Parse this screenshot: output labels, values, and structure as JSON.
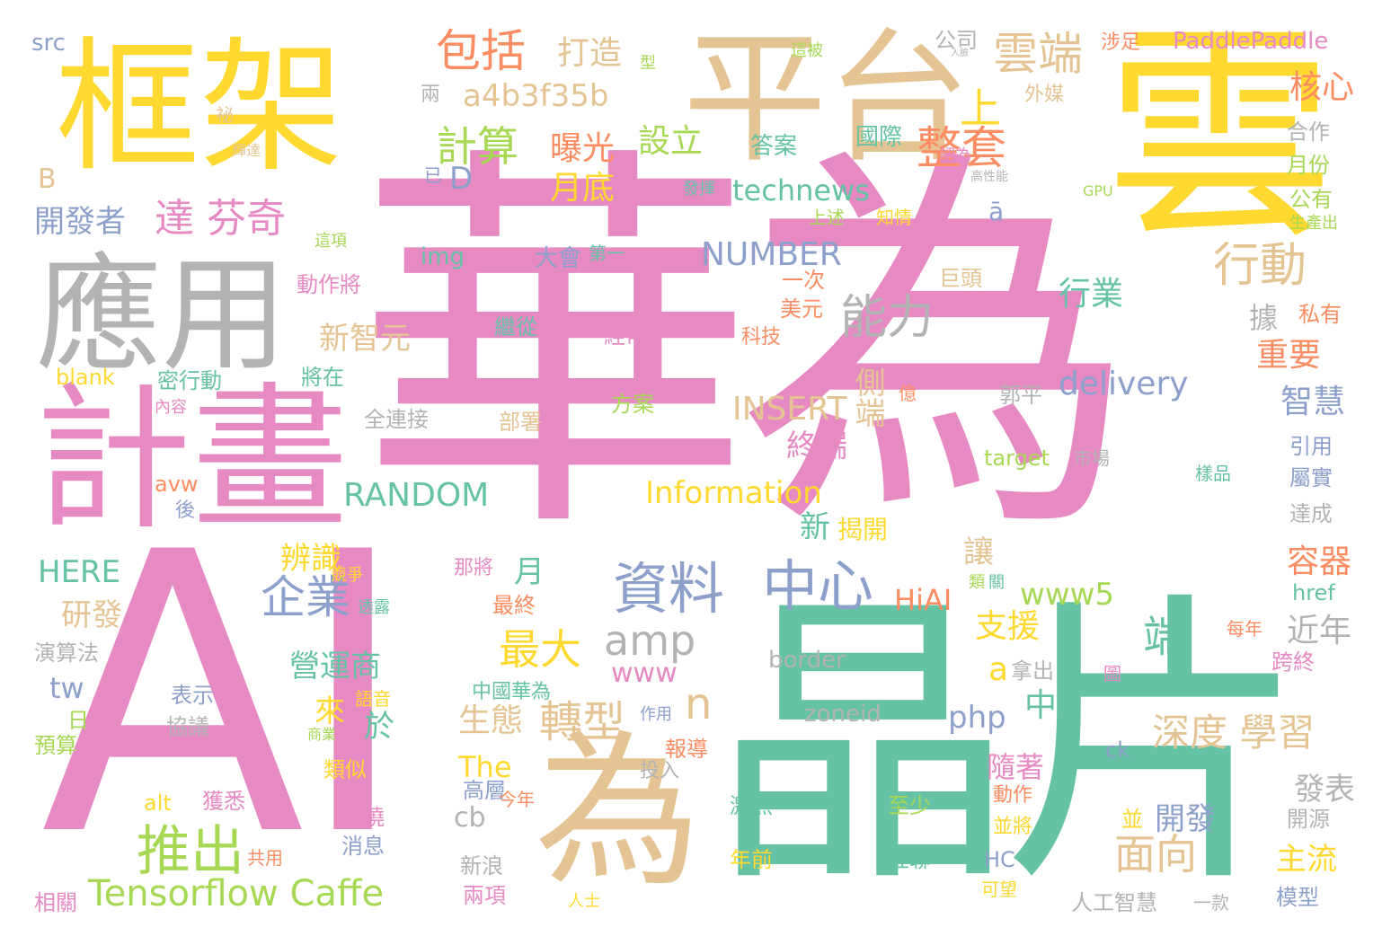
{
  "palette": {
    "pink": "#e78ac3",
    "green": "#66c2a5",
    "orange": "#fc8d62",
    "blue": "#8da0cb",
    "lime": "#a6d854",
    "yellow": "#ffd92f",
    "tan": "#e5c494",
    "gray": "#b3b3b3"
  },
  "words": [
    {
      "text": "華為",
      "color": "pink"
    },
    {
      "text": "AI",
      "color": "pink"
    },
    {
      "text": "雲",
      "color": "yellow"
    },
    {
      "text": "晶片",
      "color": "green"
    },
    {
      "text": "框架",
      "color": "yellow"
    },
    {
      "text": "平台",
      "color": "tan"
    },
    {
      "text": "應用",
      "color": "gray"
    },
    {
      "text": "計畫",
      "color": "pink"
    },
    {
      "text": "為",
      "color": "tan"
    },
    {
      "text": "資料",
      "color": "blue"
    },
    {
      "text": "中心",
      "color": "blue"
    },
    {
      "text": "推出",
      "color": "lime"
    },
    {
      "text": "雲端",
      "color": "tan"
    },
    {
      "text": "整套",
      "color": "orange"
    },
    {
      "text": "行動",
      "color": "tan"
    },
    {
      "text": "能力",
      "color": "gray"
    },
    {
      "text": "企業",
      "color": "blue"
    },
    {
      "text": "amp",
      "color": "gray"
    },
    {
      "text": "包括",
      "color": "orange"
    },
    {
      "text": "計算",
      "color": "lime"
    },
    {
      "text": "達 芬奇",
      "color": "pink"
    },
    {
      "text": "Tensorflow Caffe",
      "color": "lime"
    },
    {
      "text": "轉型",
      "color": "tan"
    },
    {
      "text": "深度 學習",
      "color": "tan"
    },
    {
      "text": "a4b3f35b",
      "color": "tan"
    },
    {
      "text": "端",
      "color": "green"
    },
    {
      "text": "最大",
      "color": "yellow"
    },
    {
      "text": "面向",
      "color": "tan"
    },
    {
      "text": "delivery",
      "color": "blue"
    },
    {
      "text": "RANDOM",
      "color": "green"
    },
    {
      "text": "Information",
      "color": "yellow"
    },
    {
      "text": "technews",
      "color": "green"
    },
    {
      "text": "NUMBER",
      "color": "blue"
    },
    {
      "text": "INSERT",
      "color": "tan"
    },
    {
      "text": "打造",
      "color": "tan"
    },
    {
      "text": "曝光",
      "color": "orange"
    },
    {
      "text": "設立",
      "color": "lime"
    },
    {
      "text": "月底",
      "color": "yellow"
    },
    {
      "text": "開發者",
      "color": "blue"
    },
    {
      "text": "新智元",
      "color": "tan"
    },
    {
      "text": "行業",
      "color": "green"
    },
    {
      "text": "重要",
      "color": "orange"
    },
    {
      "text": "智慧",
      "color": "blue"
    },
    {
      "text": "核心",
      "color": "orange"
    },
    {
      "text": "側端",
      "color": "tan"
    },
    {
      "text": "終端",
      "color": "pink"
    },
    {
      "text": "辨識",
      "color": "yellow"
    },
    {
      "text": "研發",
      "color": "tan"
    },
    {
      "text": "營運商",
      "color": "green"
    },
    {
      "text": "生態",
      "color": "tan"
    },
    {
      "text": "www5",
      "color": "lime"
    },
    {
      "text": "www",
      "color": "pink"
    },
    {
      "text": "HiAI",
      "color": "orange"
    },
    {
      "text": "支援",
      "color": "yellow"
    },
    {
      "text": "容器",
      "color": "orange"
    },
    {
      "text": "近年",
      "color": "gray"
    },
    {
      "text": "HERE",
      "color": "green"
    },
    {
      "text": "The",
      "color": "yellow"
    },
    {
      "text": "php",
      "color": "blue"
    },
    {
      "text": "開發",
      "color": "blue"
    },
    {
      "text": "主流",
      "color": "yellow"
    },
    {
      "text": "發表",
      "color": "gray"
    },
    {
      "text": "隨著",
      "color": "pink"
    },
    {
      "text": "中",
      "color": "green"
    },
    {
      "text": "上",
      "color": "yellow"
    },
    {
      "text": "D",
      "color": "blue"
    },
    {
      "text": "新",
      "color": "green"
    },
    {
      "text": "揭開",
      "color": "yellow"
    },
    {
      "text": "讓",
      "color": "tan"
    },
    {
      "text": "月",
      "color": "green"
    },
    {
      "text": "n",
      "color": "tan"
    },
    {
      "text": "cb",
      "color": "gray"
    },
    {
      "text": "來",
      "color": "yellow"
    },
    {
      "text": "於",
      "color": "green"
    },
    {
      "text": "a",
      "color": "yellow"
    },
    {
      "text": "tw",
      "color": "blue"
    },
    {
      "text": "src",
      "color": "blue"
    },
    {
      "text": "PaddlePaddle",
      "color": "pink"
    },
    {
      "text": "公司",
      "color": "gray"
    },
    {
      "text": "涉足",
      "color": "orange"
    },
    {
      "text": "外媒",
      "color": "tan"
    },
    {
      "text": "兩",
      "color": "gray"
    },
    {
      "text": "國際",
      "color": "green"
    },
    {
      "text": "答案",
      "color": "green"
    },
    {
      "text": "合作",
      "color": "gray"
    },
    {
      "text": "月份",
      "color": "lime"
    },
    {
      "text": "公有",
      "color": "lime"
    },
    {
      "text": "生產出",
      "color": "lime"
    },
    {
      "text": "GPU",
      "color": "lime"
    },
    {
      "text": "認為",
      "color": "pink"
    },
    {
      "text": "高性能",
      "color": "gray"
    },
    {
      "text": "知情",
      "color": "yellow"
    },
    {
      "text": "上述",
      "color": "lime"
    },
    {
      "text": "發揮",
      "color": "green"
    },
    {
      "text": "已",
      "color": "blue"
    },
    {
      "text": "img",
      "color": "green"
    },
    {
      "text": "大會",
      "color": "blue"
    },
    {
      "text": "第一",
      "color": "green"
    },
    {
      "text": "一次",
      "color": "orange"
    },
    {
      "text": "巨頭",
      "color": "tan"
    },
    {
      "text": "美元",
      "color": "orange"
    },
    {
      "text": "科技",
      "color": "orange"
    },
    {
      "text": "私有",
      "color": "orange"
    },
    {
      "text": "據",
      "color": "gray"
    },
    {
      "text": "經常",
      "color": "pink"
    },
    {
      "text": "繼從",
      "color": "green"
    },
    {
      "text": "將在",
      "color": "green"
    },
    {
      "text": "動作將",
      "color": "pink"
    },
    {
      "text": "這項",
      "color": "lime"
    },
    {
      "text": "密行動",
      "color": "green"
    },
    {
      "text": "blank",
      "color": "yellow"
    },
    {
      "text": "內容",
      "color": "pink"
    },
    {
      "text": "億",
      "color": "orange"
    },
    {
      "text": "郭平",
      "color": "gray"
    },
    {
      "text": "全連接",
      "color": "gray"
    },
    {
      "text": "部署",
      "color": "tan"
    },
    {
      "text": "方案",
      "color": "lime"
    },
    {
      "text": "target",
      "color": "lime"
    },
    {
      "text": "市場",
      "color": "gray"
    },
    {
      "text": "樣品",
      "color": "green"
    },
    {
      "text": "引用",
      "color": "blue"
    },
    {
      "text": "屬實",
      "color": "blue"
    },
    {
      "text": "達成",
      "color": "gray"
    },
    {
      "text": "avw",
      "color": "orange"
    },
    {
      "text": "後",
      "color": "blue"
    },
    {
      "text": "那將",
      "color": "pink"
    },
    {
      "text": "競爭",
      "color": "yellow"
    },
    {
      "text": "透露",
      "color": "green"
    },
    {
      "text": "最終",
      "color": "orange"
    },
    {
      "text": "類",
      "color": "lime"
    },
    {
      "text": "關",
      "color": "green"
    },
    {
      "text": "href",
      "color": "green"
    },
    {
      "text": "border",
      "color": "gray"
    },
    {
      "text": "zoneid",
      "color": "gray"
    },
    {
      "text": "拿出",
      "color": "gray"
    },
    {
      "text": "跨終",
      "color": "pink"
    },
    {
      "text": "每年",
      "color": "orange"
    },
    {
      "text": "演算法",
      "color": "gray"
    },
    {
      "text": "表示",
      "color": "blue"
    },
    {
      "text": "協議",
      "color": "gray"
    },
    {
      "text": "日",
      "color": "lime"
    },
    {
      "text": "預算",
      "color": "lime"
    },
    {
      "text": "語音",
      "color": "yellow"
    },
    {
      "text": "商業",
      "color": "lime"
    },
    {
      "text": "類似",
      "color": "yellow"
    },
    {
      "text": "中國華為",
      "color": "green"
    },
    {
      "text": "作用",
      "color": "blue"
    },
    {
      "text": "報導",
      "color": "orange"
    },
    {
      "text": "投入",
      "color": "gray"
    },
    {
      "text": "ck",
      "color": "blue"
    },
    {
      "text": "高層",
      "color": "blue"
    },
    {
      "text": "動作",
      "color": "orange"
    },
    {
      "text": "並將",
      "color": "yellow"
    },
    {
      "text": "並",
      "color": "yellow"
    },
    {
      "text": "今年",
      "color": "orange"
    },
    {
      "text": "激烈",
      "color": "green"
    },
    {
      "text": "至少",
      "color": "lime"
    },
    {
      "text": "互聯",
      "color": "green"
    },
    {
      "text": "年前",
      "color": "yellow"
    },
    {
      "text": "開源",
      "color": "gray"
    },
    {
      "text": "模型",
      "color": "blue"
    },
    {
      "text": "人工智慧",
      "color": "gray"
    },
    {
      "text": "一款",
      "color": "gray"
    },
    {
      "text": "可望",
      "color": "yellow"
    },
    {
      "text": "HC",
      "color": "blue"
    },
    {
      "text": "新浪",
      "color": "gray"
    },
    {
      "text": "兩項",
      "color": "pink"
    },
    {
      "text": "消息",
      "color": "blue"
    },
    {
      "text": "揭曉",
      "color": "pink"
    },
    {
      "text": "獲悉",
      "color": "pink"
    },
    {
      "text": "alt",
      "color": "yellow"
    },
    {
      "text": "共用",
      "color": "orange"
    },
    {
      "text": "相關",
      "color": "pink"
    },
    {
      "text": "人士",
      "color": "yellow"
    },
    {
      "text": "B",
      "color": "tan"
    },
    {
      "text": "ā",
      "color": "blue"
    },
    {
      "text": "這被",
      "color": "lime"
    },
    {
      "text": "型",
      "color": "lime"
    },
    {
      "text": "祕",
      "color": "tan"
    },
    {
      "text": "輝達",
      "color": "tan"
    },
    {
      "text": "人臉",
      "color": "gray"
    },
    {
      "text": "圖",
      "color": "pink"
    }
  ]
}
